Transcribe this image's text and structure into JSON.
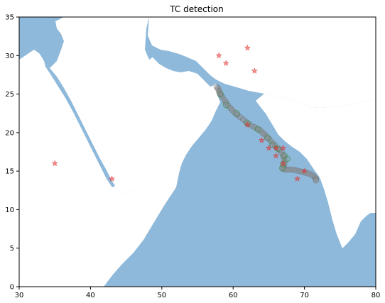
{
  "chart_data": {
    "type": "scatter",
    "title": "TC detection",
    "xlim": [
      30,
      80
    ],
    "ylim": [
      0,
      35
    ],
    "x_ticks": [
      30,
      40,
      50,
      60,
      70,
      80
    ],
    "y_ticks": [
      0,
      5,
      10,
      15,
      20,
      25,
      30,
      35
    ],
    "grid": false,
    "colors": {
      "sea": "#8fb9da",
      "land": "#ffffff",
      "track_fill": "#8c8c8c",
      "track_edge": "#6e6e6e",
      "green_edge": "#2e8b2e",
      "detection": "#e03030",
      "frame": "#000000"
    },
    "series": [
      {
        "marker": "circle",
        "points": [
          [
            57.7,
            25.9
          ],
          [
            57.9,
            25.7
          ],
          [
            58.0,
            25.4
          ],
          [
            58.1,
            25.2
          ],
          [
            58.3,
            24.9
          ],
          [
            58.5,
            24.6
          ],
          [
            58.8,
            24.2
          ],
          [
            59.0,
            23.9
          ],
          [
            59.3,
            23.5
          ],
          [
            59.6,
            23.2
          ],
          [
            59.9,
            22.9
          ],
          [
            60.2,
            22.6
          ],
          [
            60.6,
            22.3
          ],
          [
            61.0,
            22.0
          ],
          [
            61.4,
            21.7
          ],
          [
            61.8,
            21.4
          ],
          [
            62.2,
            21.1
          ],
          [
            62.6,
            20.9
          ],
          [
            63.0,
            20.7
          ],
          [
            63.4,
            20.5
          ],
          [
            63.8,
            20.3
          ],
          [
            64.1,
            20.0
          ],
          [
            64.4,
            19.8
          ],
          [
            64.7,
            19.5
          ],
          [
            65.0,
            19.2
          ],
          [
            65.3,
            18.9
          ],
          [
            65.6,
            18.6
          ],
          [
            65.9,
            18.3
          ],
          [
            66.2,
            18.0
          ],
          [
            66.5,
            17.7
          ],
          [
            66.8,
            17.4
          ],
          [
            67.0,
            17.1
          ],
          [
            67.1,
            16.8
          ],
          [
            67.2,
            16.4
          ],
          [
            67.2,
            16.0
          ],
          [
            67.1,
            15.6
          ],
          [
            67.0,
            15.3
          ],
          [
            67.3,
            15.2
          ],
          [
            67.7,
            15.2
          ],
          [
            68.1,
            15.2
          ],
          [
            68.5,
            15.2
          ],
          [
            68.9,
            15.1
          ],
          [
            69.3,
            15.0
          ],
          [
            69.7,
            14.9
          ],
          [
            70.1,
            14.8
          ],
          [
            70.5,
            14.7
          ],
          [
            70.9,
            14.6
          ],
          [
            71.2,
            14.4
          ],
          [
            71.5,
            14.2
          ],
          [
            71.6,
            14.0
          ],
          [
            71.6,
            13.8
          ]
        ]
      },
      {
        "marker": "circle",
        "points": [
          [
            58.2,
            25.0
          ],
          [
            59.0,
            23.6
          ],
          [
            60.5,
            22.5
          ],
          [
            62.0,
            21.2
          ],
          [
            63.5,
            20.4
          ],
          [
            64.8,
            19.3
          ],
          [
            65.5,
            18.4
          ],
          [
            66.3,
            17.9
          ],
          [
            67.2,
            17.0
          ],
          [
            67.6,
            16.6
          ],
          [
            67.0,
            15.9
          ],
          [
            66.9,
            15.4
          ]
        ]
      },
      {
        "marker": "star",
        "points": [
          [
            58,
            30
          ],
          [
            59,
            29
          ],
          [
            62,
            31
          ],
          [
            63,
            28
          ],
          [
            35,
            16
          ],
          [
            43,
            14
          ],
          [
            62,
            21
          ],
          [
            64,
            19
          ],
          [
            65,
            18
          ],
          [
            66,
            18
          ],
          [
            67,
            18
          ],
          [
            66,
            17
          ],
          [
            67,
            16
          ],
          [
            70,
            15
          ],
          [
            69,
            14
          ]
        ]
      }
    ]
  }
}
